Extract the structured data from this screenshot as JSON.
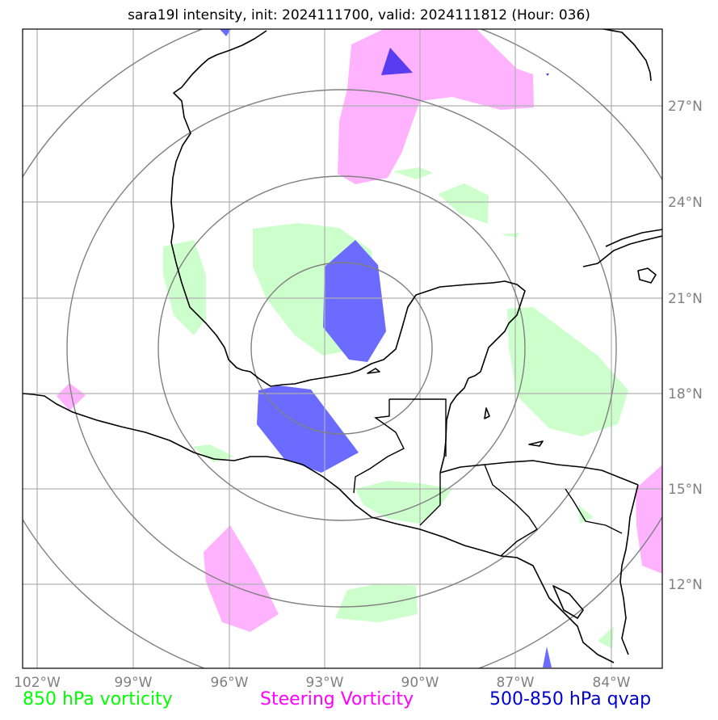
{
  "title": "sara19l intensity, init: 2024111700, valid: 2024111812 (Hour: 036)",
  "x_ticks": [
    "102°W",
    "99°W",
    "96°W",
    "93°W",
    "90°W",
    "87°W",
    "84°W"
  ],
  "y_ticks": [
    "27°N",
    "24°N",
    "21°N",
    "18°N",
    "15°N",
    "12°N"
  ],
  "legend": {
    "vort850": {
      "label": "850 hPa vorticity",
      "color": "#00ff00"
    },
    "steering": {
      "label": "Steering Vorticity",
      "color": "#ff00ff"
    },
    "qvap": {
      "label": "500-850 hPa qvap",
      "color": "#0000cc"
    }
  },
  "colors": {
    "vort850_fill": "#ccffcc",
    "steering_fill": "#ffb3ff",
    "qvap_fill": "#6b6bff",
    "qvap_dark": "#5a3cf0",
    "grid": "#b0b0b0",
    "rings": "#808080",
    "coast": "#000000"
  }
}
